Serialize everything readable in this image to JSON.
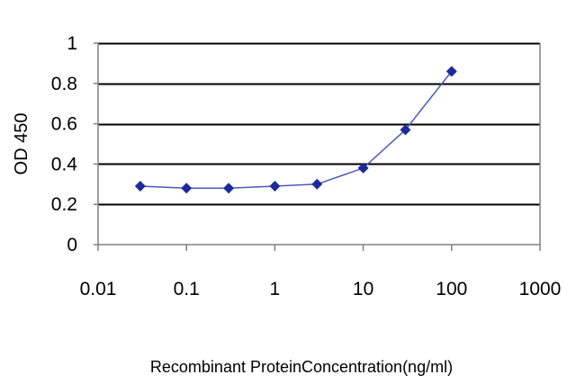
{
  "chart_data": {
    "type": "line",
    "title": "",
    "xlabel": "Recombinant ProteinConcentration(ng/ml)",
    "ylabel": "OD 450",
    "x_scale": "log",
    "xlim": [
      0.01,
      1000
    ],
    "ylim": [
      0,
      1
    ],
    "x_ticks": [
      0.01,
      0.1,
      1,
      10,
      100,
      1000
    ],
    "x_tick_labels": [
      "0.01",
      "0.1",
      "1",
      "10",
      "100",
      "1000"
    ],
    "y_ticks": [
      0,
      0.2,
      0.4,
      0.6,
      0.8,
      1
    ],
    "y_tick_labels": [
      "0",
      "0.2",
      "0.4",
      "0.6",
      "0.8",
      "1"
    ],
    "grid": "horizontal",
    "legend": "none",
    "marker": "diamond",
    "series": [
      {
        "color": "#1f2a9a",
        "x": [
          0.03,
          0.1,
          0.3,
          1,
          3,
          10,
          30,
          100
        ],
        "y": [
          0.29,
          0.28,
          0.28,
          0.29,
          0.3,
          0.38,
          0.57,
          0.86
        ]
      }
    ],
    "colors": {
      "line": "#4a5ab8",
      "marker": "#1f2a9a",
      "grid": "#000000",
      "axis": "#808080"
    }
  }
}
